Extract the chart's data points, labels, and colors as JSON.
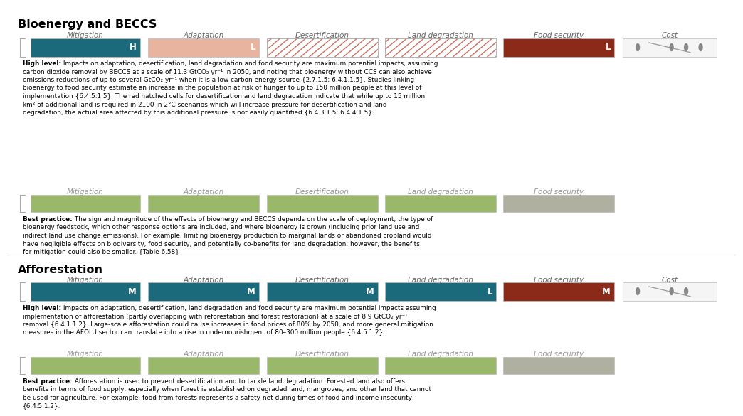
{
  "bg_color": "#ffffff",
  "section1_title": "Bioenergy and BECCS",
  "section2_title": "Afforestation",
  "columns": [
    "Mitigation",
    "Adaptation",
    "Desertification",
    "Land degradation",
    "Food security",
    "Cost"
  ],
  "teal": "#1b6a7b",
  "pink_light": "#e8b4a0",
  "hatched_fill": "#ffffff",
  "hatch_line": "#c87060",
  "dark_red": "#8b2a18",
  "green_cobenefit": "#9ab86a",
  "gray_cobenefit": "#b0b0a0",
  "dot_color": "#888888",
  "section1_hl_colors": [
    "teal",
    "pink_light",
    "hatched",
    "hatched",
    "dark_red",
    "cost"
  ],
  "section1_hl_labels": [
    "H",
    "L",
    "",
    "",
    "L",
    ""
  ],
  "section1_bp_colors": [
    "green",
    "green",
    "green",
    "green",
    "gray",
    "none"
  ],
  "section2_hl_colors": [
    "teal",
    "teal",
    "teal",
    "teal",
    "dark_red",
    "cost"
  ],
  "section2_hl_labels": [
    "M",
    "M",
    "M",
    "L",
    "M",
    ""
  ],
  "section2_bp_colors": [
    "green",
    "green",
    "green",
    "green",
    "gray",
    "none"
  ],
  "section1_hl_text": "High level: Impacts on adaptation, desertification, land degradation and food security are maximum potential impacts, assuming carbon dioxide removal by BECCS at a scale of 11.3 GtCO₂ yr⁻¹ in 2050, and noting that bioenergy without CCS can also achieve emissions reductions of up to several GtCO₂ yr⁻¹ when it is a low carbon energy source {2.7.1.5; 6.4.1.1.5}. Studies linking bioenergy to food security estimate an increase in the population at risk of hunger to up to 150 million people at this level of implementation {6.4.5.1.5}. The red hatched cells for desertification and land degradation indicate that while up to 15 million km² of additional land is required in 2100 in 2°C scenarios which will increase pressure for desertification and land degradation, the actual area affected by this additional pressure is not easily quantified {6.4.3.1.5; 6.4.4.1.5}.",
  "section1_bp_text": "Best practice: The sign and magnitude of the effects of bioenergy and BECCS depends on the scale of deployment, the type of bioenergy feedstock, which other response options are included, and where bioenergy is grown (including prior land use and indirect land use change emissions). For example, limiting bioenergy production to marginal lands or abandoned cropland would have negligible effects on biodiversity, food security, and potentially co-benefits for land degradation; however, the benefits for mitigation could also be smaller. {Table 6.58}",
  "section2_hl_text": "High level: Impacts on adaptation, desertification, land degradation and food security are maximum potential impacts assuming implementation of afforestation (partly overlapping with reforestation and forest restoration) at a scale of 8.9 GtCO₂ yr⁻¹ removal {6.4.1.1.2}. Large-scale afforestation could cause increases in food prices of 80% by 2050, and more general mitigation measures in the AFOLU sector can translate into a rise in undernourishment of 80–300 million people {6.4.5.1.2}.",
  "section2_bp_text": "Best practice: Afforestation is used to prevent desertification and to tackle land degradation. Forested land also offers benefits in terms of food supply, especially when forest is established on degraded land, mangroves, and other land that cannot be used for agriculture. For example, food from forests represents a safety-net during times of food and income insecurity {6.4.5.1.2}."
}
